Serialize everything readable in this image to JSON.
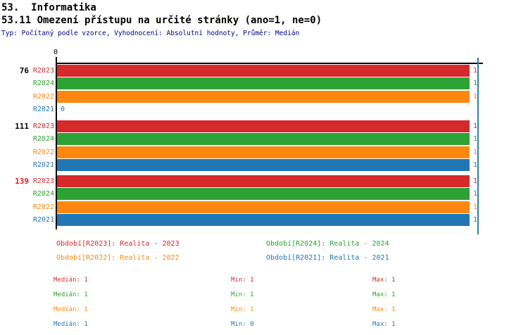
{
  "header": {
    "title": "53.  Informatika",
    "subtitle": "53.11 Omezení přístupu na určité stránky (ano=1, ne=0)",
    "meta": "Typ: Počítaný podle vzorce, Vyhodnocení: Absolutní hodnoty, Průměr: Medián"
  },
  "colors": {
    "red": "#d5292b",
    "green": "#2ba233",
    "orange": "#fd870f",
    "blue": "#2176b5",
    "median_line": "#2c7fb8",
    "meta_text": "#000080",
    "highlight_group_label": "#dd1c1c"
  },
  "chart_data": {
    "type": "bar",
    "orientation": "horizontal",
    "x_axis": {
      "tick_labels": [
        "0"
      ],
      "range": [
        0,
        1
      ],
      "position": "top"
    },
    "median_marker_value": 1,
    "series_colors": {
      "R2023": "#d5292b",
      "R2024": "#2ba233",
      "R2022": "#fd870f",
      "R2021": "#2176b5"
    },
    "groups": [
      {
        "label": "76",
        "rows": [
          {
            "series": "R2023",
            "value": 1
          },
          {
            "series": "R2024",
            "value": 1
          },
          {
            "series": "R2022",
            "value": 1
          },
          {
            "series": "R2021",
            "value": 0
          }
        ]
      },
      {
        "label": "111",
        "rows": [
          {
            "series": "R2023",
            "value": 1
          },
          {
            "series": "R2024",
            "value": 1
          },
          {
            "series": "R2022",
            "value": 1
          },
          {
            "series": "R2021",
            "value": 1
          }
        ]
      },
      {
        "label": "139",
        "rows": [
          {
            "series": "R2023",
            "value": 1
          },
          {
            "series": "R2024",
            "value": 1
          },
          {
            "series": "R2022",
            "value": 1
          },
          {
            "series": "R2021",
            "value": 1
          }
        ]
      }
    ]
  },
  "legend": {
    "items": [
      {
        "label": "Období[R2023]: Realita - 2023",
        "color": "#d5292b"
      },
      {
        "label": "Období[R2024]: Realita - 2024",
        "color": "#2ba233"
      },
      {
        "label": "Období[R2022]: Realita - 2022",
        "color": "#fd870f"
      },
      {
        "label": "Období[R2021]: Realita - 2021",
        "color": "#2176b5"
      }
    ]
  },
  "stats": {
    "rows": [
      {
        "median": "Medián: 1",
        "min": "Min: 1",
        "max": "Max: 1"
      },
      {
        "median": "Medián: 1",
        "min": "Min: 1",
        "max": "Max: 1"
      },
      {
        "median": "Medián: 1",
        "min": "Min: 1",
        "max": "Max: 1"
      },
      {
        "median": "Medián: 1",
        "min": "Min: 0",
        "max": "Max: 1"
      }
    ]
  }
}
